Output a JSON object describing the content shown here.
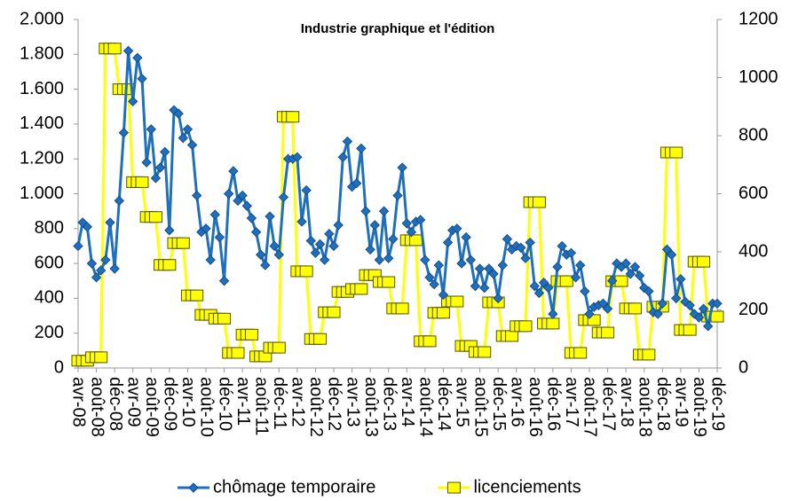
{
  "chart_data": {
    "type": "line",
    "title": "Industrie graphique et l'édition",
    "categories": [
      "avr-08",
      null,
      null,
      null,
      "août-08",
      null,
      null,
      null,
      "déc-08",
      null,
      null,
      null,
      "avr-09",
      null,
      null,
      null,
      "août-09",
      null,
      null,
      null,
      "déc-09",
      null,
      null,
      null,
      "avr-10",
      null,
      null,
      null,
      "août-10",
      null,
      null,
      null,
      "déc-10",
      null,
      null,
      null,
      "avr-11",
      null,
      null,
      null,
      "août-11",
      null,
      null,
      null,
      "déc-11",
      null,
      null,
      null,
      "avr-12",
      null,
      null,
      null,
      "août-12",
      null,
      null,
      null,
      "déc-12",
      null,
      null,
      null,
      "avr-13",
      null,
      null,
      null,
      "août-13",
      null,
      null,
      null,
      "déc-13",
      null,
      null,
      null,
      "avr-14",
      null,
      null,
      null,
      "août-14",
      null,
      null,
      null,
      "déc-14",
      null,
      null,
      null,
      "avr-15",
      null,
      null,
      null,
      "août-15",
      null,
      null,
      null,
      "déc-15",
      null,
      null,
      null,
      "avr-16",
      null,
      null,
      null,
      "août-16",
      null,
      null,
      null,
      "déc-16",
      null,
      null,
      null,
      "avr-17",
      null,
      null,
      null,
      "août-17",
      null,
      null,
      null,
      "déc-17",
      null,
      null,
      null,
      "avr-18",
      null,
      null,
      null,
      "août-18",
      null,
      null,
      null,
      "déc-18",
      null,
      null,
      null,
      "avr-19",
      null,
      null,
      null,
      "août-19",
      null,
      null,
      null,
      "déc-19"
    ],
    "series": [
      {
        "name": "chômage temporaire",
        "color": "#1f6fbf",
        "marker": "diamond",
        "values": [
          700,
          835,
          810,
          600,
          520,
          560,
          620,
          835,
          570,
          960,
          1350,
          1820,
          1530,
          1780,
          1660,
          1180,
          1370,
          1090,
          1150,
          1240,
          790,
          1480,
          1460,
          1320,
          1370,
          1280,
          990,
          780,
          800,
          620,
          880,
          750,
          500,
          1000,
          1130,
          960,
          990,
          930,
          860,
          780,
          650,
          590,
          870,
          700,
          650,
          980,
          1200,
          1200,
          1210,
          840,
          1020,
          730,
          660,
          710,
          620,
          770,
          700,
          820,
          1210,
          1300,
          1040,
          1060,
          1260,
          900,
          680,
          820,
          620,
          900,
          630,
          740,
          990,
          1150,
          830,
          780,
          840,
          850,
          620,
          520,
          480,
          590,
          420,
          720,
          790,
          800,
          600,
          750,
          620,
          470,
          570,
          460,
          570,
          540,
          400,
          590,
          740,
          680,
          700,
          690,
          630,
          720,
          470,
          430,
          490,
          460,
          310,
          580,
          700,
          650,
          660,
          520,
          590,
          440,
          310,
          350,
          360,
          370,
          340,
          500,
          600,
          580,
          600,
          540,
          580,
          530,
          460,
          440,
          320,
          310,
          370,
          680,
          650,
          400,
          510,
          380,
          360,
          310,
          290,
          340,
          240,
          370,
          370
        ]
      },
      {
        "name": "licenciements",
        "color": "#ffff00",
        "marker": "square",
        "axis": "y2",
        "values": [
          25,
          25,
          25,
          37,
          37,
          37,
          1100,
          1100,
          1100,
          960,
          960,
          960,
          640,
          640,
          640,
          520,
          520,
          520,
          355,
          355,
          355,
          430,
          430,
          430,
          250,
          250,
          250,
          183,
          183,
          183,
          170,
          170,
          170,
          52,
          52,
          52,
          115,
          115,
          115,
          40,
          40,
          40,
          70,
          70,
          70,
          865,
          865,
          865,
          333,
          333,
          333,
          100,
          100,
          100,
          192,
          192,
          192,
          262,
          262,
          262,
          272,
          272,
          272,
          320,
          320,
          320,
          296,
          296,
          296,
          205,
          205,
          205,
          440,
          440,
          440,
          92,
          92,
          92,
          190,
          190,
          190,
          229,
          229,
          229,
          76,
          76,
          76,
          55,
          55,
          55,
          226,
          226,
          226,
          110,
          110,
          110,
          144,
          144,
          144,
          571,
          571,
          571,
          153,
          153,
          153,
          299,
          299,
          299,
          52,
          52,
          52,
          165,
          165,
          165,
          122,
          122,
          122,
          299,
          299,
          299,
          205,
          205,
          205,
          46,
          46,
          46,
          211,
          211,
          211,
          742,
          742,
          742,
          131,
          131,
          131,
          366,
          366,
          366,
          177,
          177,
          177
        ]
      }
    ],
    "ylim": [
      0,
      2000
    ],
    "yticks": [
      0,
      200,
      400,
      600,
      800,
      {
        "value": 1000,
        "label": "1.000"
      },
      {
        "value": 1200,
        "label": "1.200"
      },
      {
        "value": 1400,
        "label": "1.400"
      },
      {
        "value": 1600,
        "label": "1.600"
      },
      {
        "value": 1800,
        "label": "1.800"
      },
      {
        "value": 2000,
        "label": "2.000"
      }
    ],
    "y2lim": [
      0,
      1200
    ],
    "y2ticks": [
      0,
      200,
      400,
      600,
      800,
      1000,
      1200
    ],
    "grid": false,
    "legend": "bottom"
  }
}
